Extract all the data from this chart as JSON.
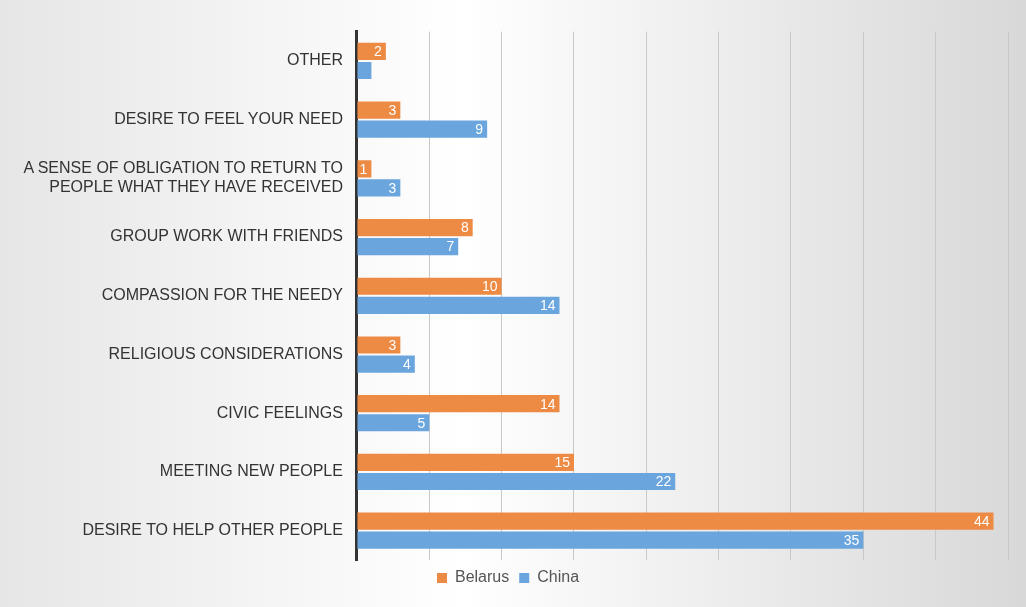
{
  "chart_data": {
    "type": "bar",
    "orientation": "horizontal",
    "categories": [
      "OTHER",
      "DESIRE TO FEEL YOUR NEED",
      "A SENSE OF OBLIGATION TO RETURN TO PEOPLE WHAT THEY HAVE RECEIVED",
      "GROUP WORK WITH FRIENDS",
      "COMPASSION FOR THE NEEDY",
      "RELIGIOUS CONSIDERATIONS",
      "CIVIC FEELINGS",
      "MEETING NEW PEOPLE",
      "DESIRE TO HELP OTHER PEOPLE"
    ],
    "series": [
      {
        "name": "Belarus",
        "color": "#ed8a43",
        "values": [
          2,
          3,
          1,
          8,
          10,
          3,
          14,
          15,
          44
        ],
        "value_labels": [
          "2",
          "3",
          "1",
          "8",
          "10",
          "3",
          "14",
          "15",
          "44"
        ]
      },
      {
        "name": "China",
        "color": "#6aa5dd",
        "values": [
          1,
          9,
          3,
          7,
          14,
          4,
          5,
          22,
          35
        ],
        "value_labels": [
          null,
          "9",
          "3",
          "7",
          "14",
          "4",
          "5",
          "22",
          "35"
        ]
      }
    ],
    "tick_labels": "y",
    "grid": "x",
    "legend": "bottom"
  }
}
